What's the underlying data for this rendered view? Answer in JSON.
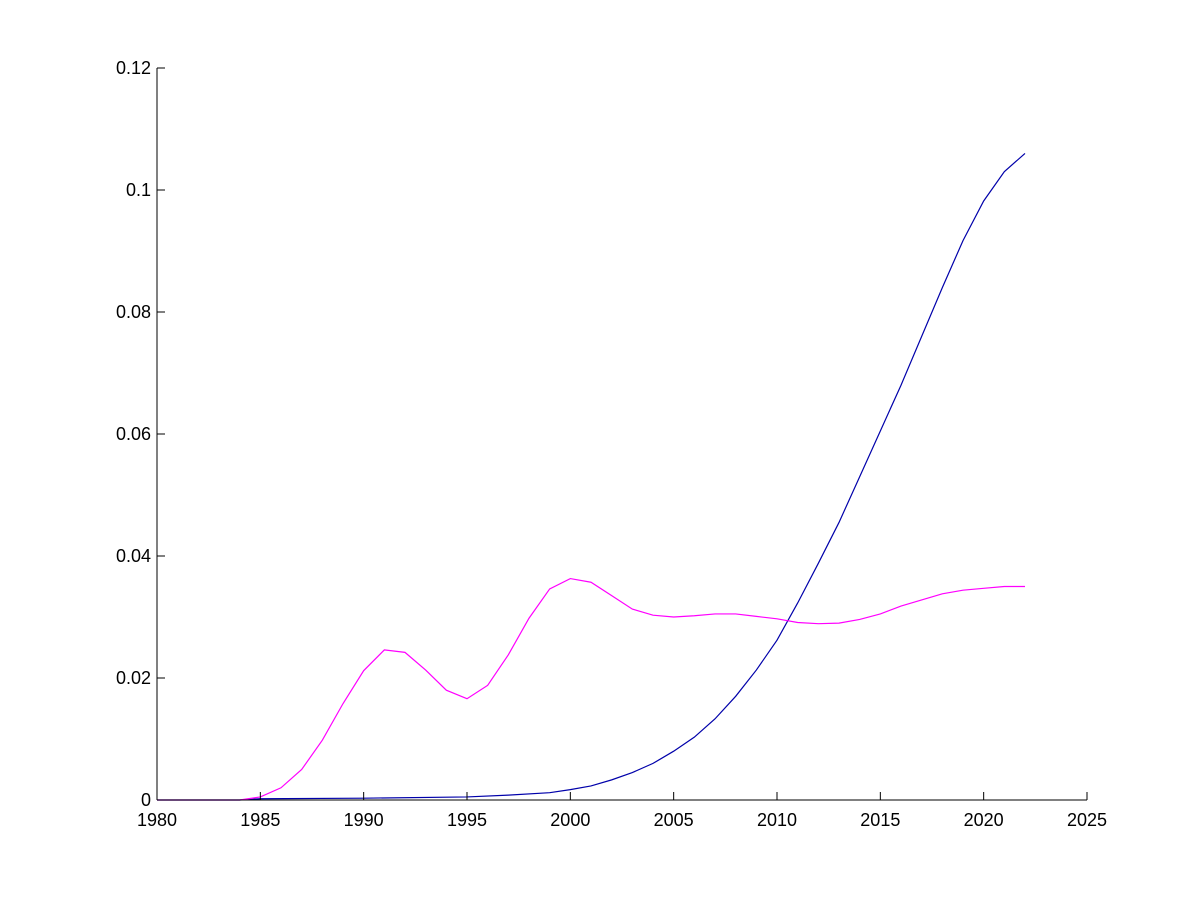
{
  "chart_data": {
    "type": "line",
    "title": "",
    "xlabel": "",
    "ylabel": "",
    "xlim": [
      1980,
      2025
    ],
    "ylim": [
      0,
      0.12
    ],
    "grid": false,
    "legend": "none",
    "xticks": [
      1980,
      1985,
      1990,
      1995,
      2000,
      2005,
      2010,
      2015,
      2020,
      2025
    ],
    "xtick_labels": [
      "1980",
      "1985",
      "1990",
      "1995",
      "2000",
      "2005",
      "2010",
      "2015",
      "2020",
      "2025"
    ],
    "yticks": [
      0,
      0.02,
      0.04,
      0.06,
      0.08,
      0.1,
      0.12
    ],
    "ytick_labels": [
      "0",
      "0.02",
      "0.04",
      "0.06",
      "0.08",
      "0.1",
      "0.12"
    ],
    "series": [
      {
        "color": "#0000aa",
        "x": [
          1980,
          1984,
          1985,
          1990,
          1995,
          1997,
          1999,
          2000,
          2001,
          2002,
          2003,
          2004,
          2005,
          2006,
          2007,
          2008,
          2009,
          2010,
          2011,
          2012,
          2013,
          2014,
          2015,
          2016,
          2017,
          2018,
          2019,
          2020,
          2021,
          2022
        ],
        "values": [
          0,
          0,
          0.0002,
          0.0003,
          0.0005,
          0.0008,
          0.0012,
          0.0017,
          0.0023,
          0.0033,
          0.0045,
          0.006,
          0.008,
          0.0103,
          0.0133,
          0.017,
          0.0213,
          0.0262,
          0.0323,
          0.0388,
          0.0455,
          0.053,
          0.0605,
          0.068,
          0.076,
          0.084,
          0.0917,
          0.0982,
          0.103,
          0.106
        ]
      },
      {
        "color": "#ff00ff",
        "x": [
          1980,
          1984,
          1985,
          1986,
          1987,
          1988,
          1989,
          1990,
          1991,
          1992,
          1993,
          1994,
          1995,
          1996,
          1997,
          1998,
          1999,
          2000,
          2001,
          2002,
          2003,
          2004,
          2005,
          2006,
          2007,
          2008,
          2009,
          2010,
          2011,
          2012,
          2013,
          2014,
          2015,
          2016,
          2017,
          2018,
          2019,
          2020,
          2021,
          2022
        ],
        "values": [
          0,
          0,
          0.0005,
          0.002,
          0.005,
          0.0098,
          0.0158,
          0.0212,
          0.0246,
          0.0242,
          0.0213,
          0.018,
          0.0166,
          0.0188,
          0.0238,
          0.0298,
          0.0346,
          0.0363,
          0.0357,
          0.0335,
          0.0313,
          0.0303,
          0.03,
          0.0302,
          0.0305,
          0.0305,
          0.0301,
          0.0297,
          0.0291,
          0.0289,
          0.029,
          0.0296,
          0.0305,
          0.0318,
          0.0328,
          0.0338,
          0.0344,
          0.0347,
          0.035,
          0.035
        ]
      }
    ]
  }
}
